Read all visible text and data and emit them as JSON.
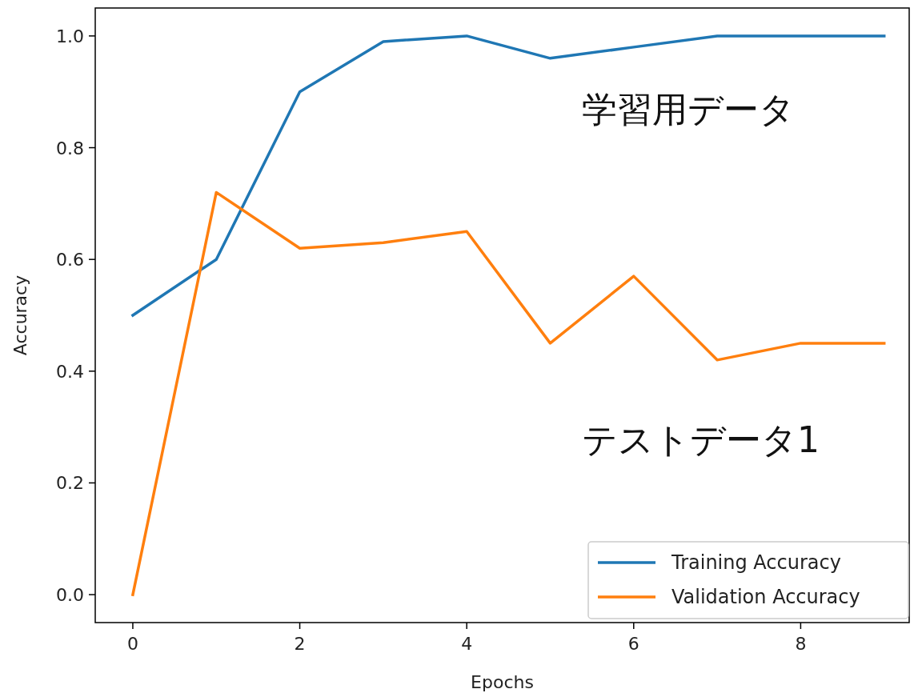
{
  "chart_data": {
    "type": "line",
    "xlabel": "Epochs",
    "ylabel": "Accuracy",
    "x": [
      0,
      1,
      2,
      3,
      4,
      5,
      6,
      7,
      8,
      9
    ],
    "series": [
      {
        "name": "Training Accuracy",
        "color": "#1f77b4",
        "values": [
          0.5,
          0.6,
          0.9,
          0.99,
          1.0,
          0.96,
          0.98,
          1.0,
          1.0,
          1.0
        ]
      },
      {
        "name": "Validation Accuracy",
        "color": "#ff7f0e",
        "values": [
          0.0,
          0.72,
          0.62,
          0.63,
          0.65,
          0.45,
          0.57,
          0.42,
          0.45,
          0.45
        ]
      }
    ],
    "annotations": [
      "学習用データ",
      "テストデータ1"
    ],
    "xlim": [
      -0.45,
      9.3
    ],
    "ylim": [
      -0.05,
      1.05
    ],
    "xticks": [
      0,
      2,
      4,
      6,
      8
    ],
    "yticks": [
      {
        "value": 0,
        "label": "0.0"
      },
      {
        "value": 0.2,
        "label": "0.2"
      },
      {
        "value": 0.4,
        "label": "0.4"
      },
      {
        "value": 0.6,
        "label": "0.6"
      },
      {
        "value": 0.8,
        "label": "0.8"
      },
      {
        "value": 1,
        "label": "1.0"
      }
    ],
    "grid": false,
    "legend": "bottom right",
    "marker": "none",
    "line_style": "solid"
  }
}
